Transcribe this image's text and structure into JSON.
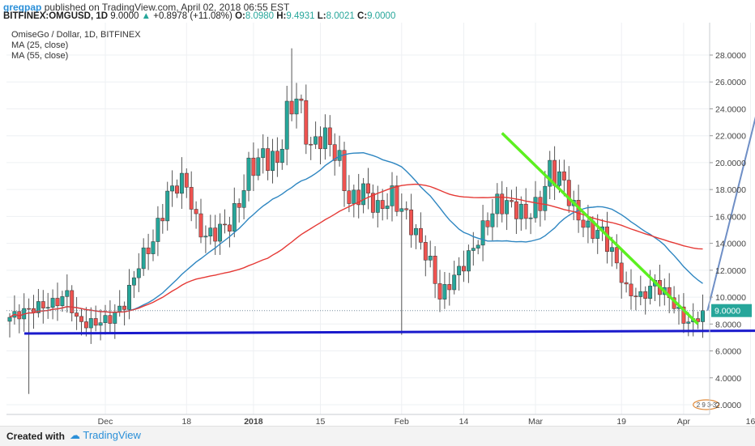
{
  "header": {
    "user": "gregpap",
    "published_text": "published on TradingView.com, April 02, 2018 06:55 EST",
    "symbol": "BITFINEX:OMGUSD, 1D",
    "last": "9.0000",
    "change": "+0.8978 (+11.08%)",
    "open_label": "O:",
    "open": "8.0980",
    "high_label": "H:",
    "high": "9.4931",
    "low_label": "L:",
    "low": "8.0021",
    "close_label": "C:",
    "close": "9.0000"
  },
  "footer": {
    "created": "Created with",
    "brand": "TradingView"
  },
  "colors": {
    "up": "#26a69a",
    "down": "#ef5350",
    "ma25": "#2e86c1",
    "ma55": "#e53935",
    "support": "#1a1acc",
    "trend": "#5cf020",
    "arrow": "#6f8fc6",
    "grid": "#eef0f3"
  },
  "chart_data": {
    "type": "candlestick",
    "title": "OmiseGo / Dollar, 1D, BITFINEX",
    "legend": [
      "MA (25, close)",
      "MA (55, close)"
    ],
    "legend_position": "top-left",
    "price_axis_side": "right",
    "ylim": [
      1.0,
      30.0
    ],
    "y_ticks": [
      "2.0000",
      "4.0000",
      "6.0000",
      "8.0000",
      "10.0000",
      "12.0000",
      "14.0000",
      "16.0000",
      "18.0000",
      "20.0000",
      "22.0000",
      "24.0000",
      "26.0000",
      "28.0000"
    ],
    "x_ticks": [
      {
        "label": "Dec",
        "day": 20,
        "bold": false
      },
      {
        "label": "18",
        "day": 37,
        "bold": false
      },
      {
        "label": "2018",
        "day": 51,
        "bold": true
      },
      {
        "label": "15",
        "day": 65,
        "bold": false
      },
      {
        "label": "Feb",
        "day": 82,
        "bold": false
      },
      {
        "label": "14",
        "day": 95,
        "bold": false
      },
      {
        "label": "Mar",
        "day": 110,
        "bold": false
      },
      {
        "label": "19",
        "day": 128,
        "bold": false
      },
      {
        "label": "Apr",
        "day": 141,
        "bold": false
      },
      {
        "label": "16",
        "day": 155,
        "bold": false
      }
    ],
    "last_price_label": "9.0000",
    "last_price": 9.0,
    "annotations": [
      {
        "kind": "support-line",
        "from": {
          "day": 0,
          "price": 7.3
        },
        "to": {
          "day": 155,
          "price": 7.5
        }
      },
      {
        "kind": "trend-line",
        "from": {
          "day": 103,
          "price": 22.2
        },
        "to": {
          "day": 144,
          "price": 8.0
        }
      },
      {
        "kind": "arrow",
        "from": {
          "day": 146,
          "price": 9.0
        },
        "to": {
          "day": 160,
          "price": 29.0
        }
      }
    ],
    "watermark_text": "2 9 3 3"
  }
}
